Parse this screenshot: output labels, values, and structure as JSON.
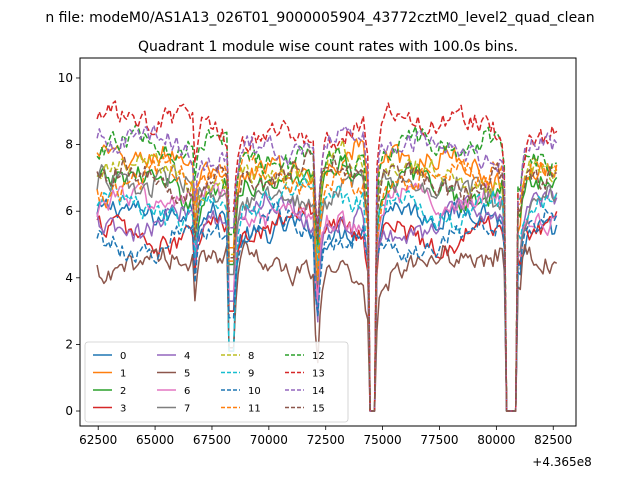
{
  "figure": {
    "suptitle": "n file: modeM0/AS1A13_026T01_9000005904_43772cztM0_level2_quad_clean",
    "offset_label": "+4.365e8"
  },
  "chart_data": {
    "type": "line",
    "title": "Quadrant 1 module wise count rates with 100.0s bins.",
    "xlabel": "",
    "ylabel": "",
    "xlim": [
      61700,
      83500
    ],
    "ylim": [
      -0.45,
      10.6
    ],
    "x_ticks": [
      62500,
      65000,
      67500,
      70000,
      72500,
      75000,
      77500,
      80000,
      82500
    ],
    "x_tick_labels": [
      "62500",
      "65000",
      "67500",
      "70000",
      "72500",
      "75000",
      "77500",
      "80000",
      "82500"
    ],
    "y_ticks": [
      0,
      2,
      4,
      6,
      8,
      10
    ],
    "y_tick_labels": [
      "0",
      "2",
      "4",
      "6",
      "8",
      "10"
    ],
    "grid": false,
    "legend_position": "lower-left",
    "legend_columns": 4,
    "x_range": [
      62450,
      82650
    ],
    "gaps": [
      [
        74380,
        74680
      ],
      [
        80450,
        80900
      ]
    ],
    "dip_spike": [
      68250,
      68450
    ],
    "series": [
      {
        "name": "0",
        "color": "#1f77b4",
        "style": "solid",
        "level": 5.7
      },
      {
        "name": "1",
        "color": "#ff7f0e",
        "style": "solid",
        "level": 7.4
      },
      {
        "name": "2",
        "color": "#2ca02c",
        "style": "solid",
        "level": 6.9
      },
      {
        "name": "3",
        "color": "#d62728",
        "style": "solid",
        "level": 5.5
      },
      {
        "name": "4",
        "color": "#9467bd",
        "style": "solid",
        "level": 5.8
      },
      {
        "name": "5",
        "color": "#8c564b",
        "style": "solid",
        "level": 4.4
      },
      {
        "name": "6",
        "color": "#e377c2",
        "style": "solid",
        "level": 6.1
      },
      {
        "name": "7",
        "color": "#7f7f7f",
        "style": "solid",
        "level": 6.6
      },
      {
        "name": "8",
        "color": "#bcbd22",
        "style": "dashed",
        "level": 7.2
      },
      {
        "name": "9",
        "color": "#17becf",
        "style": "dashed",
        "level": 6.3
      },
      {
        "name": "10",
        "color": "#1f77b4",
        "style": "dashed",
        "level": 5.3
      },
      {
        "name": "11",
        "color": "#ff7f0e",
        "style": "dashed",
        "level": 7.0
      },
      {
        "name": "12",
        "color": "#2ca02c",
        "style": "dashed",
        "level": 7.8
      },
      {
        "name": "13",
        "color": "#d62728",
        "style": "dashed",
        "level": 8.5
      },
      {
        "name": "14",
        "color": "#9467bd",
        "style": "dashed",
        "level": 8.0
      },
      {
        "name": "15",
        "color": "#8c564b",
        "style": "dashed",
        "level": 7.1
      }
    ]
  }
}
